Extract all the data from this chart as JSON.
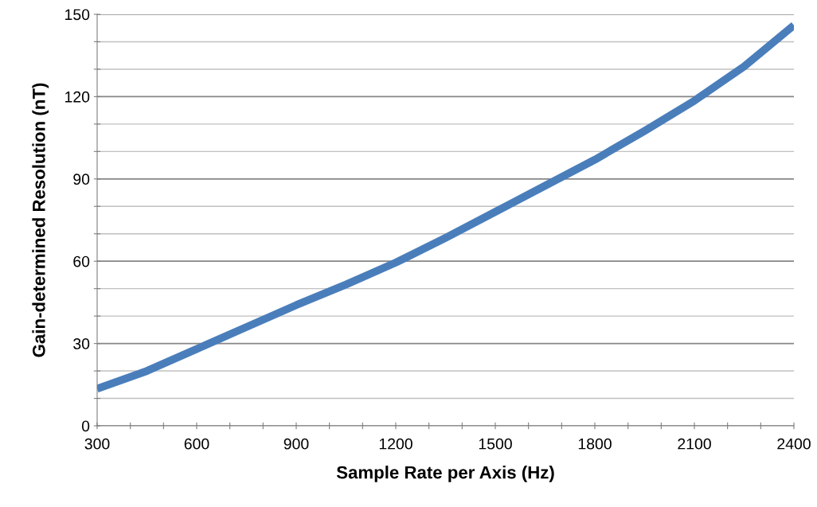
{
  "chart_data": {
    "type": "line",
    "xlabel": "Sample Rate per Axis (Hz)",
    "ylabel": "Gain-determined Resolution (nT)",
    "series": [
      {
        "color": "#4a7ebb",
        "x": [
          300,
          450,
          600,
          750,
          900,
          1050,
          1200,
          1350,
          1500,
          1650,
          1800,
          1950,
          2100,
          2250,
          2400
        ],
        "values": [
          13.5,
          20,
          28,
          36,
          44,
          51.5,
          59.5,
          68.5,
          78,
          87.5,
          97,
          107.5,
          118.5,
          131,
          146
        ]
      }
    ],
    "xlim": [
      300,
      2400
    ],
    "xticks": [
      300,
      {
        "value": 400,
        "label": null
      },
      {
        "value": 500,
        "label": null
      },
      600,
      {
        "value": 700,
        "label": null
      },
      {
        "value": 800,
        "label": null
      },
      900,
      {
        "value": 1000,
        "label": null
      },
      {
        "value": 1100,
        "label": null
      },
      1200,
      {
        "value": 1300,
        "label": null
      },
      {
        "value": 1400,
        "label": null
      },
      1500,
      {
        "value": 1600,
        "label": null
      },
      {
        "value": 1700,
        "label": null
      },
      1800,
      {
        "value": 1900,
        "label": null
      },
      {
        "value": 2000,
        "label": null
      },
      2100,
      {
        "value": 2200,
        "label": null
      },
      {
        "value": 2300,
        "label": null
      },
      2400
    ],
    "ylim": [
      0,
      150
    ],
    "yticks": [
      0,
      {
        "value": 10,
        "label": null
      },
      {
        "value": 20,
        "label": null
      },
      30,
      {
        "value": 40,
        "label": null
      },
      {
        "value": 50,
        "label": null
      },
      60,
      {
        "value": 70,
        "label": null
      },
      {
        "value": 80,
        "label": null
      },
      90,
      {
        "value": 100,
        "label": null
      },
      {
        "value": 110,
        "label": null
      },
      120,
      {
        "value": 130,
        "label": null
      },
      {
        "value": 140,
        "label": null
      },
      150
    ],
    "grid": "y",
    "legend": false,
    "marker": "none",
    "line_style": "solid"
  }
}
